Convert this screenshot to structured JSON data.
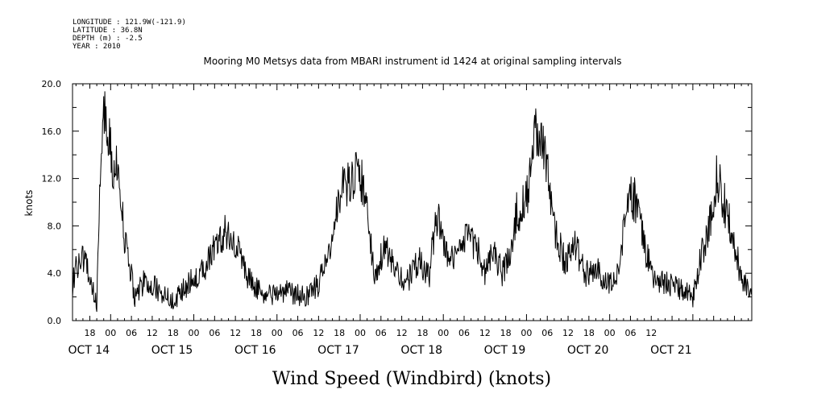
{
  "meta": {
    "longitude": "LONGITUDE : 121.9W(-121.9)",
    "latitude": "LATITUDE : 36.8N",
    "depth": "DEPTH (m) : -2.5",
    "year": "YEAR : 2010"
  },
  "chart_data": {
    "type": "line",
    "title": "Mooring M0 Metsys data from MBARI instrument id 1424 at original sampling intervals",
    "bottom_title": "Wind Speed (Windbird) (knots)",
    "ylabel": "knots",
    "xlabel": "",
    "ylim": [
      0,
      20
    ],
    "y_ticks": [
      "0.0",
      "4.0",
      "8.0",
      "12.0",
      "16.0",
      "20.0"
    ],
    "x_range_hours": "Oct 13 13:00 to Oct 21 17:00 (2010)",
    "hour_tick_labels": [
      "18",
      "00",
      "06",
      "12",
      "18",
      "00",
      "06",
      "12",
      "18",
      "00",
      "06",
      "12",
      "18",
      "00",
      "06",
      "12",
      "18",
      "00",
      "06",
      "12",
      "18",
      "00",
      "06",
      "12",
      "18",
      "00",
      "06",
      "12"
    ],
    "date_labels": [
      "OCT 14",
      "OCT 15",
      "OCT 16",
      "OCT 17",
      "OCT 18",
      "OCT 19",
      "OCT 20",
      "OCT 21"
    ],
    "grid": false,
    "series": [
      {
        "color": "#000000",
        "anchors": [
          [
            "OCT 13 13:00",
            3.0
          ],
          [
            "OCT 13 15:00",
            5.5
          ],
          [
            "OCT 13 17:00",
            4.5
          ],
          [
            "OCT 13 20:00",
            1.5
          ],
          [
            "OCT 13 21:00",
            12.0
          ],
          [
            "OCT 13 22:00",
            18.4
          ],
          [
            "OCT 14 00:00",
            14.0
          ],
          [
            "OCT 14 02:00",
            12.5
          ],
          [
            "OCT 14 04:00",
            7.0
          ],
          [
            "OCT 14 07:00",
            2.0
          ],
          [
            "OCT 14 10:00",
            3.5
          ],
          [
            "OCT 14 14:00",
            2.5
          ],
          [
            "OCT 14 18:00",
            1.5
          ],
          [
            "OCT 14 22:00",
            3.0
          ],
          [
            "OCT 15 02:00",
            4.0
          ],
          [
            "OCT 15 06:00",
            6.0
          ],
          [
            "OCT 15 09:00",
            7.5
          ],
          [
            "OCT 15 12:00",
            6.5
          ],
          [
            "OCT 15 16:00",
            3.5
          ],
          [
            "OCT 15 20:00",
            2.0
          ],
          [
            "OCT 16 02:00",
            2.5
          ],
          [
            "OCT 16 08:00",
            2.0
          ],
          [
            "OCT 16 12:00",
            3.0
          ],
          [
            "OCT 16 15:00",
            6.0
          ],
          [
            "OCT 16 18:00",
            10.5
          ],
          [
            "OCT 16 21:00",
            12.0
          ],
          [
            "OCT 17 00:00",
            12.5
          ],
          [
            "OCT 17 02:00",
            9.0
          ],
          [
            "OCT 17 04:00",
            4.0
          ],
          [
            "OCT 17 07:00",
            6.0
          ],
          [
            "OCT 17 10:00",
            5.0
          ],
          [
            "OCT 17 13:00",
            3.0
          ],
          [
            "OCT 17 17:00",
            5.0
          ],
          [
            "OCT 17 20:00",
            4.0
          ],
          [
            "OCT 17 22:00",
            9.0
          ],
          [
            "OCT 18 02:00",
            5.0
          ],
          [
            "OCT 18 06:00",
            7.0
          ],
          [
            "OCT 18 10:00",
            6.0
          ],
          [
            "OCT 18 12:00",
            4.0
          ],
          [
            "OCT 18 14:00",
            6.0
          ],
          [
            "OCT 18 17:00",
            4.0
          ],
          [
            "OCT 18 19:00",
            5.5
          ],
          [
            "OCT 18 21:00",
            9.0
          ],
          [
            "OCT 19 00:00",
            10.0
          ],
          [
            "OCT 19 02:00",
            15.5
          ],
          [
            "OCT 19 04:00",
            15.8
          ],
          [
            "OCT 19 06:00",
            12.5
          ],
          [
            "OCT 19 08:00",
            8.0
          ],
          [
            "OCT 19 11:00",
            5.0
          ],
          [
            "OCT 19 14:00",
            6.5
          ],
          [
            "OCT 19 17:00",
            4.0
          ],
          [
            "OCT 19 20:00",
            4.5
          ],
          [
            "OCT 19 23:00",
            3.0
          ],
          [
            "OCT 20 02:00",
            4.0
          ],
          [
            "OCT 20 04:00",
            7.5
          ],
          [
            "OCT 20 06:00",
            10.5
          ],
          [
            "OCT 20 08:00",
            10.0
          ],
          [
            "OCT 20 10:00",
            6.0
          ],
          [
            "OCT 20 13:00",
            3.5
          ],
          [
            "OCT 20 17:00",
            3.0
          ],
          [
            "OCT 20 21:00",
            2.5
          ],
          [
            "OCT 21 00:00",
            2.0
          ],
          [
            "OCT 21 02:00",
            5.0
          ],
          [
            "OCT 21 05:00",
            8.5
          ],
          [
            "OCT 21 07:00",
            12.5
          ],
          [
            "OCT 21 09:00",
            10.0
          ],
          [
            "OCT 21 12:00",
            6.5
          ],
          [
            "OCT 21 14:00",
            3.5
          ],
          [
            "OCT 21 17:00",
            2.0
          ]
        ]
      }
    ]
  }
}
